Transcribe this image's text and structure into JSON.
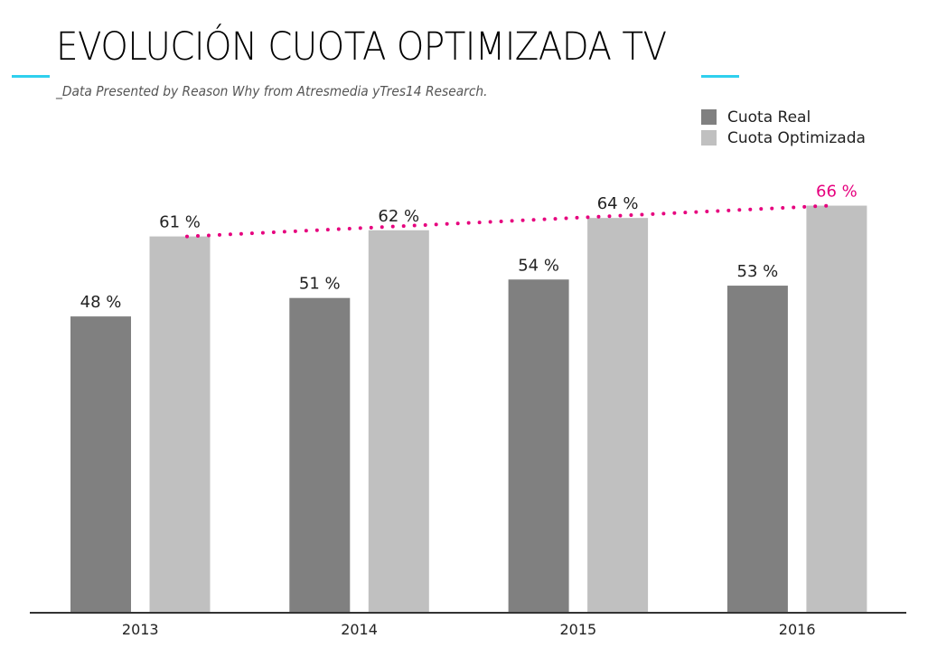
{
  "header": {
    "title": "EVOLUCIÓN CUOTA OPTIMIZADA TV",
    "subtitle": "_Data Presented by Reason Why from Atresmedia yTres14 Research."
  },
  "colors": {
    "accent": "#2fd0ee",
    "real": "#808080",
    "optimized": "#c0c0c0",
    "trend": "#e6007e",
    "axis": "#333333",
    "label": "#222222"
  },
  "chart_data": {
    "type": "bar",
    "title": "EVOLUCIÓN CUOTA OPTIMIZADA TV",
    "xlabel": "",
    "ylabel": "",
    "categories": [
      "2013",
      "2014",
      "2015",
      "2016"
    ],
    "series": [
      {
        "name": "Cuota Real",
        "values": [
          48,
          51,
          54,
          53
        ],
        "labels": [
          "48 %",
          "51 %",
          "54 %",
          "53 %"
        ]
      },
      {
        "name": "Cuota Optimizada",
        "values": [
          61,
          62,
          64,
          66
        ],
        "labels": [
          "61 %",
          "62 %",
          "64 %",
          "66 %"
        ]
      }
    ],
    "trend_line": {
      "series": "Cuota Optimizada",
      "from": [
        "2013",
        61
      ],
      "to": [
        "2016",
        66
      ],
      "style": "dotted"
    },
    "highlighted_label": {
      "series": "Cuota Optimizada",
      "category": "2016"
    },
    "ylim": [
      0,
      100
    ],
    "grid": false,
    "legend": "top-right",
    "legend_entries": [
      "Cuota Real",
      "Cuota Optimizada"
    ]
  }
}
